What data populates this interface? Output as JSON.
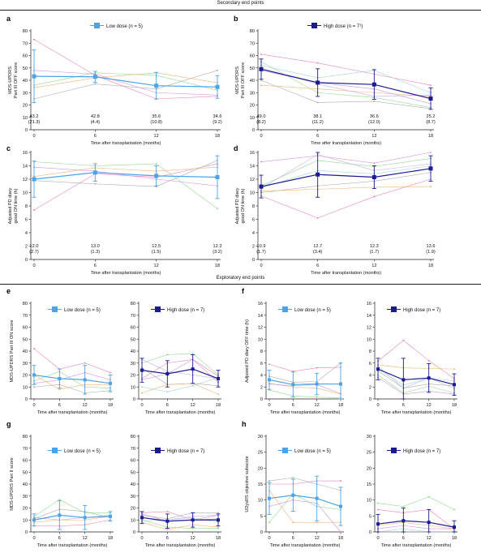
{
  "sections": {
    "secondary": "Secondary end points",
    "exploratory": "Exploratory end points"
  },
  "colors": {
    "low": "#4da3e6",
    "high": "#1b1b8f",
    "individual": [
      "#e86fb0",
      "#7fd47f",
      "#a0a0a0",
      "#f0a860",
      "#c884d8",
      "#8fd3c9",
      "#b9a5e8"
    ]
  },
  "chart_data": [
    {
      "id": "a",
      "type": "line",
      "letter": "a",
      "x": [
        0,
        6,
        12,
        18
      ],
      "xticks": [
        "0",
        "6",
        "12",
        "18"
      ],
      "xlabel": "Time after transplantation (months)",
      "ylabel": "MDS-UPDRS\nPart III OFF score",
      "ylim": [
        0,
        80
      ],
      "yticks": [
        0,
        10,
        20,
        30,
        40,
        50,
        60,
        70,
        80
      ],
      "legend": "Low dose (n = 5)",
      "series": [
        {
          "group": "low",
          "values": [
            43.2,
            42.8,
            35.6,
            34.6
          ],
          "sd": [
            21.3,
            4.4,
            10.8,
            9.2
          ]
        }
      ],
      "individuals": [
        [
          73,
          44,
          25,
          27
        ],
        [
          36,
          46,
          44,
          32
        ],
        [
          25,
          37,
          33,
          48
        ],
        [
          34,
          42,
          46,
          38
        ],
        [
          48,
          45,
          30,
          28
        ]
      ],
      "value_labels": [
        [
          "43.2",
          "(21.3)"
        ],
        [
          "42.8",
          "(4.4)"
        ],
        [
          "35.6",
          "(10.8)"
        ],
        [
          "34.6",
          "(9.2)"
        ]
      ]
    },
    {
      "id": "b",
      "type": "line",
      "letter": "b",
      "x": [
        0,
        6,
        12,
        18
      ],
      "xticks": [
        "0",
        "6",
        "12",
        "18"
      ],
      "xlabel": "Time after transplantation (months)",
      "ylabel": "MDS-UPDRS\nPart III OFF score",
      "ylim": [
        0,
        80
      ],
      "yticks": [
        0,
        10,
        20,
        30,
        40,
        50,
        60,
        70,
        80
      ],
      "legend": "High dose (n = 7¹)",
      "series": [
        {
          "group": "high",
          "values": [
            49.0,
            38.1,
            36.6,
            25.2
          ],
          "sd": [
            8.2,
            11.2,
            12.0,
            8.7
          ]
        }
      ],
      "individuals": [
        [
          61,
          54,
          45,
          36
        ],
        [
          55,
          30,
          26,
          18
        ],
        [
          40,
          22,
          23,
          17
        ],
        [
          36,
          33,
          30,
          27
        ],
        [
          48,
          38,
          33,
          21
        ],
        [
          52,
          42,
          48,
          30
        ],
        [
          50,
          37,
          27,
          28
        ]
      ],
      "value_labels": [
        [
          "49.0",
          "(8.2)"
        ],
        [
          "38.1",
          "(11.2)"
        ],
        [
          "36.6",
          "(12.0)"
        ],
        [
          "25.2",
          "(8.7)"
        ]
      ]
    },
    {
      "id": "c",
      "type": "line",
      "letter": "c",
      "x": [
        0,
        6,
        12,
        18
      ],
      "xticks": [
        "0",
        "6",
        "12",
        "18"
      ],
      "xlabel": "Time after transplantation (months)",
      "ylabel": "Adjusted PD diary\ngood ON time (h)",
      "ylim": [
        0,
        16
      ],
      "yticks": [
        0,
        2,
        4,
        6,
        8,
        10,
        12,
        14,
        16
      ],
      "legend": "",
      "series": [
        {
          "group": "low",
          "values": [
            12.0,
            13.0,
            12.5,
            12.3
          ],
          "sd": [
            2.7,
            1.3,
            1.5,
            3.2
          ]
        }
      ],
      "individuals": [
        [
          7.4,
          12.8,
          12.3,
          14.3
        ],
        [
          14.6,
          14.0,
          14.3,
          7.6
        ],
        [
          11.8,
          11.3,
          10.9,
          14.8
        ],
        [
          12.4,
          13.7,
          13.2,
          13.8
        ],
        [
          13.8,
          13.2,
          12.0,
          11.0
        ]
      ],
      "value_labels": [
        [
          "12.0",
          "(2.7)"
        ],
        [
          "13.0",
          "(1.3)"
        ],
        [
          "12.5",
          "(1.5)"
        ],
        [
          "12.3",
          "(3.2)"
        ]
      ]
    },
    {
      "id": "d",
      "type": "line",
      "letter": "d",
      "x": [
        0,
        6,
        12,
        18
      ],
      "xticks": [
        "0",
        "6",
        "12",
        "18"
      ],
      "xlabel": "Time after transplantation (months)",
      "ylabel": "Adjusted PD diary\ngood ON time (h)",
      "ylim": [
        0,
        16
      ],
      "yticks": [
        0,
        2,
        4,
        6,
        8,
        10,
        12,
        14,
        16
      ],
      "legend": "",
      "series": [
        {
          "group": "high",
          "values": [
            10.9,
            12.7,
            12.3,
            13.6
          ],
          "sd": [
            1.7,
            3.4,
            1.7,
            1.9
          ]
        }
      ],
      "individuals": [
        [
          9.5,
          6.2,
          9.4,
          12.0
        ],
        [
          11.0,
          14.8,
          13.9,
          15.1
        ],
        [
          10.0,
          11.0,
          11.7,
          13.0
        ],
        [
          10.2,
          10.5,
          10.8,
          10.9
        ],
        [
          14.6,
          15.5,
          14.4,
          16.0
        ],
        [
          10.7,
          13.3,
          12.8,
          14.0
        ],
        [
          10.6,
          15.7,
          13.3,
          14.3
        ]
      ],
      "value_labels": [
        [
          "10.9",
          "(1.7)"
        ],
        [
          "12.7",
          "(3.4)"
        ],
        [
          "12.3",
          "(1.7)"
        ],
        [
          "13.6",
          "(1.9)"
        ]
      ]
    },
    {
      "id": "e1",
      "type": "line",
      "letter": "e",
      "x": [
        0,
        6,
        12,
        18
      ],
      "xticks": [
        "0",
        "6",
        "12",
        "18"
      ],
      "xlabel": "Time after transplantation (months)",
      "ylabel": "MDS-UPDRS Part III ON score",
      "ylim": [
        0,
        80
      ],
      "yticks": [
        0,
        10,
        20,
        30,
        40,
        50,
        60,
        70,
        80
      ],
      "legend": "Low dose (n = 5)",
      "series": [
        {
          "group": "low",
          "values": [
            20,
            17,
            16,
            13
          ],
          "sd": [
            8,
            8,
            12,
            7
          ]
        }
      ],
      "individuals": [
        [
          42,
          25,
          30,
          22
        ],
        [
          15,
          23,
          10,
          9
        ],
        [
          10,
          12,
          5,
          7
        ],
        [
          20,
          8,
          12,
          12
        ],
        [
          13,
          16,
          22,
          16
        ]
      ],
      "value_labels": []
    },
    {
      "id": "e2",
      "type": "line",
      "letter": "",
      "x": [
        0,
        6,
        12,
        18
      ],
      "xticks": [
        "0",
        "6",
        "12",
        "18"
      ],
      "xlabel": "Time after transplantation (months)",
      "ylabel": "",
      "ylim": [
        0,
        80
      ],
      "yticks": [
        0,
        10,
        20,
        30,
        40,
        50,
        60,
        70,
        80
      ],
      "legend": "High dose (n = 7)",
      "series": [
        {
          "group": "high",
          "values": [
            24,
            21,
            25,
            17
          ],
          "sd": [
            10,
            11,
            12,
            7
          ]
        }
      ],
      "individuals": [
        [
          17,
          30,
          33,
          19
        ],
        [
          30,
          37,
          38,
          20
        ],
        [
          26,
          12,
          13,
          11
        ],
        [
          5,
          12,
          13,
          4
        ],
        [
          16,
          21,
          33,
          14
        ],
        [
          10,
          6,
          11,
          18
        ],
        [
          33,
          23,
          20,
          17
        ]
      ],
      "value_labels": []
    },
    {
      "id": "f1",
      "type": "line",
      "letter": "f",
      "x": [
        0,
        6,
        12,
        18
      ],
      "xticks": [
        "0",
        "6",
        "12",
        "18"
      ],
      "xlabel": "Time after transplantation (months)",
      "ylabel": "Adjusted PD diary OFF time (h)",
      "ylim": [
        0,
        16
      ],
      "yticks": [
        0,
        2,
        4,
        6,
        8,
        10,
        12,
        14,
        16
      ],
      "legend": "Low dose (n = 5)",
      "series": [
        {
          "group": "low",
          "values": [
            3.2,
            2.4,
            2.5,
            2.5
          ],
          "sd": [
            1.6,
            2.1,
            1.8,
            3.5
          ]
        }
      ],
      "individuals": [
        [
          5.8,
          4.6,
          5.2,
          5.3
        ],
        [
          1.5,
          0.5,
          0.3,
          0.2
        ],
        [
          3.8,
          2.8,
          2.9,
          6.0
        ],
        [
          2.6,
          2.0,
          1.8,
          0.8
        ],
        [
          2.5,
          2.2,
          2.4,
          0.9
        ]
      ],
      "value_labels": []
    },
    {
      "id": "f2",
      "type": "line",
      "letter": "",
      "x": [
        0,
        6,
        12,
        18
      ],
      "xticks": [
        "0",
        "6",
        "12",
        "18"
      ],
      "xlabel": "Time after transplantation (months)",
      "ylabel": "",
      "ylim": [
        0,
        16
      ],
      "yticks": [
        0,
        2,
        4,
        6,
        8,
        10,
        12,
        14,
        16
      ],
      "legend": "High dose (n = 7)",
      "series": [
        {
          "group": "high",
          "values": [
            5.0,
            3.2,
            3.5,
            2.4
          ],
          "sd": [
            1.8,
            3.6,
            2.4,
            1.8
          ]
        }
      ],
      "individuals": [
        [
          6.3,
          9.8,
          6.4,
          3.4
        ],
        [
          4.0,
          1.0,
          2.1,
          1.0
        ],
        [
          4.7,
          1.8,
          2.5,
          2.2
        ],
        [
          5.7,
          5.2,
          5.1,
          5.0
        ],
        [
          3.6,
          0.8,
          1.3,
          0.8
        ],
        [
          5.0,
          2.3,
          3.5,
          3.0
        ],
        [
          5.5,
          1.8,
          3.5,
          1.8
        ]
      ],
      "value_labels": []
    },
    {
      "id": "g1",
      "type": "line",
      "letter": "g",
      "x": [
        0,
        6,
        12,
        18
      ],
      "xticks": [
        "0",
        "6",
        "12",
        "18"
      ],
      "xlabel": "Time after transplantation (months)",
      "ylabel": "MDS-UPDRS Part II score",
      "ylim": [
        0,
        80
      ],
      "yticks": [
        0,
        10,
        20,
        30,
        40,
        50,
        60,
        70,
        80
      ],
      "legend": "Low dose (n = 5)",
      "series": [
        {
          "group": "low",
          "values": [
            10,
            14,
            12,
            13
          ],
          "sd": [
            5,
            12,
            10,
            4
          ]
        }
      ],
      "individuals": [
        [
          5,
          5,
          6,
          10
        ],
        [
          13,
          27,
          16,
          16
        ],
        [
          11,
          19,
          17,
          12
        ],
        [
          8,
          10,
          10,
          13
        ],
        [
          12,
          10,
          12,
          14
        ]
      ],
      "value_labels": []
    },
    {
      "id": "g2",
      "type": "line",
      "letter": "",
      "x": [
        0,
        6,
        12,
        18
      ],
      "xticks": [
        "0",
        "6",
        "12",
        "18"
      ],
      "xlabel": "Time after transplantation (months)",
      "ylabel": "",
      "ylim": [
        0,
        80
      ],
      "yticks": [
        0,
        10,
        20,
        30,
        40,
        50,
        60,
        70,
        80
      ],
      "legend": "High dose (n = 7)",
      "series": [
        {
          "group": "high",
          "values": [
            12,
            9,
            10,
            10
          ],
          "sd": [
            5,
            6,
            6,
            5
          ]
        }
      ],
      "individuals": [
        [
          16,
          17,
          10,
          14
        ],
        [
          10,
          4,
          3,
          3
        ],
        [
          14,
          11,
          16,
          16
        ],
        [
          8,
          2,
          6,
          4
        ],
        [
          15,
          9,
          10,
          11
        ],
        [
          9,
          10,
          12,
          8
        ],
        [
          12,
          10,
          13,
          14
        ]
      ],
      "value_labels": []
    },
    {
      "id": "h1",
      "type": "line",
      "letter": "h",
      "x": [
        0,
        6,
        12,
        18
      ],
      "xticks": [
        "0",
        "6",
        "12",
        "18"
      ],
      "xlabel": "Time after transplantation (months)",
      "ylabel": "UDysRS objective subscore",
      "ylim": [
        0,
        30
      ],
      "yticks": [
        0,
        5,
        10,
        15,
        20,
        25,
        30
      ],
      "legend": "Low dose (n = 5)",
      "series": [
        {
          "group": "low",
          "values": [
            10.5,
            11.5,
            10.5,
            8
          ],
          "sd": [
            5,
            5,
            7,
            6
          ]
        }
      ],
      "individuals": [
        [
          15,
          15,
          16,
          16
        ],
        [
          3,
          12,
          8,
          7
        ],
        [
          16,
          17,
          15,
          13
        ],
        [
          13,
          3,
          3,
          3
        ],
        [
          8,
          10,
          9,
          0
        ]
      ],
      "value_labels": []
    },
    {
      "id": "h2",
      "type": "line",
      "letter": "",
      "x": [
        0,
        6,
        12,
        18
      ],
      "xticks": [
        "0",
        "6",
        "12",
        "18"
      ],
      "xlabel": "Time after transplantation (months)",
      "ylabel": "",
      "ylim": [
        0,
        30
      ],
      "yticks": [
        0,
        5,
        10,
        15,
        20,
        25,
        30
      ],
      "legend": "High dose (n = 7)",
      "series": [
        {
          "group": "high",
          "values": [
            2.5,
            3.5,
            3,
            1.5
          ],
          "sd": [
            3,
            4,
            4,
            2
          ]
        }
      ],
      "individuals": [
        [
          7,
          6,
          7,
          1
        ],
        [
          9,
          8,
          11,
          7
        ],
        [
          0,
          0,
          0,
          0
        ],
        [
          2,
          3,
          2,
          1
        ],
        [
          1,
          2,
          1,
          1
        ],
        [
          0,
          1,
          0,
          0
        ],
        [
          0,
          0,
          0,
          0
        ]
      ],
      "value_labels": []
    }
  ]
}
